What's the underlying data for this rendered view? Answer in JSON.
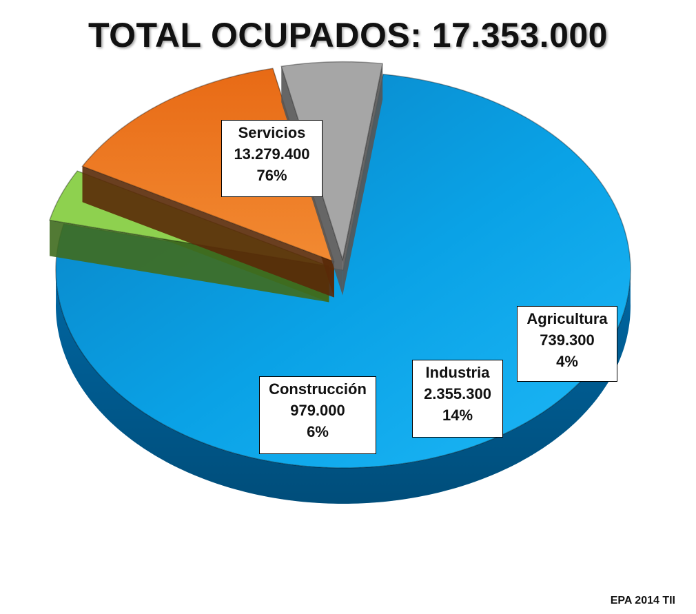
{
  "chart_data": {
    "type": "pie",
    "title": "TOTAL OCUPADOS: 17.353.000",
    "total": 17353000,
    "slices": [
      {
        "label": "Servicios",
        "value": 13279400,
        "value_text": "13.279.400",
        "percent": 76,
        "percent_text": "76%",
        "color": "#00A9F0",
        "side_color": "#0067A3",
        "exploded": false
      },
      {
        "label": "Agricultura",
        "value": 739300,
        "value_text": "739.300",
        "percent": 4,
        "percent_text": "4%",
        "color": "#8ED14F",
        "side_color": "#3F6B1E",
        "exploded": true
      },
      {
        "label": "Industria",
        "value": 2355300,
        "value_text": "2.355.300",
        "percent": 14,
        "percent_text": "14%",
        "color": "#F07D23",
        "side_color": "#5A2A08",
        "exploded": true
      },
      {
        "label": "Construcción",
        "value": 979000,
        "value_text": "979.000",
        "percent": 6,
        "percent_text": "6%",
        "color": "#A6A6A6",
        "side_color": "#555555",
        "exploded": true
      }
    ],
    "style": "3d-exploded"
  },
  "footer": {
    "source": "EPA 2014 TII"
  }
}
